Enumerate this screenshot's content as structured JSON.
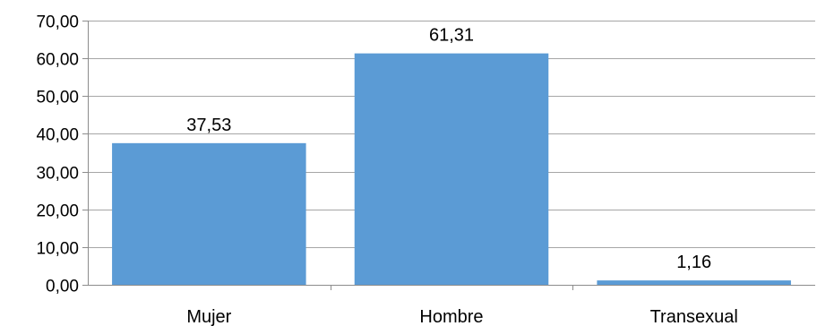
{
  "chart_data": {
    "type": "bar",
    "categories": [
      "Mujer",
      "Hombre",
      "Transexual"
    ],
    "values": [
      37.53,
      61.31,
      1.16
    ],
    "data_labels": [
      "37,53",
      "61,31",
      "1,16"
    ],
    "y_ticks": [
      0,
      10,
      20,
      30,
      40,
      50,
      60,
      70
    ],
    "y_tick_labels": [
      "0,00",
      "10,00",
      "20,00",
      "30,00",
      "40,00",
      "50,00",
      "60,00",
      "70,00"
    ],
    "ylim": [
      0,
      70
    ],
    "grid": true,
    "legend": "none",
    "title": "",
    "xlabel": "",
    "ylabel": "",
    "bar_color": "#5b9bd5"
  }
}
